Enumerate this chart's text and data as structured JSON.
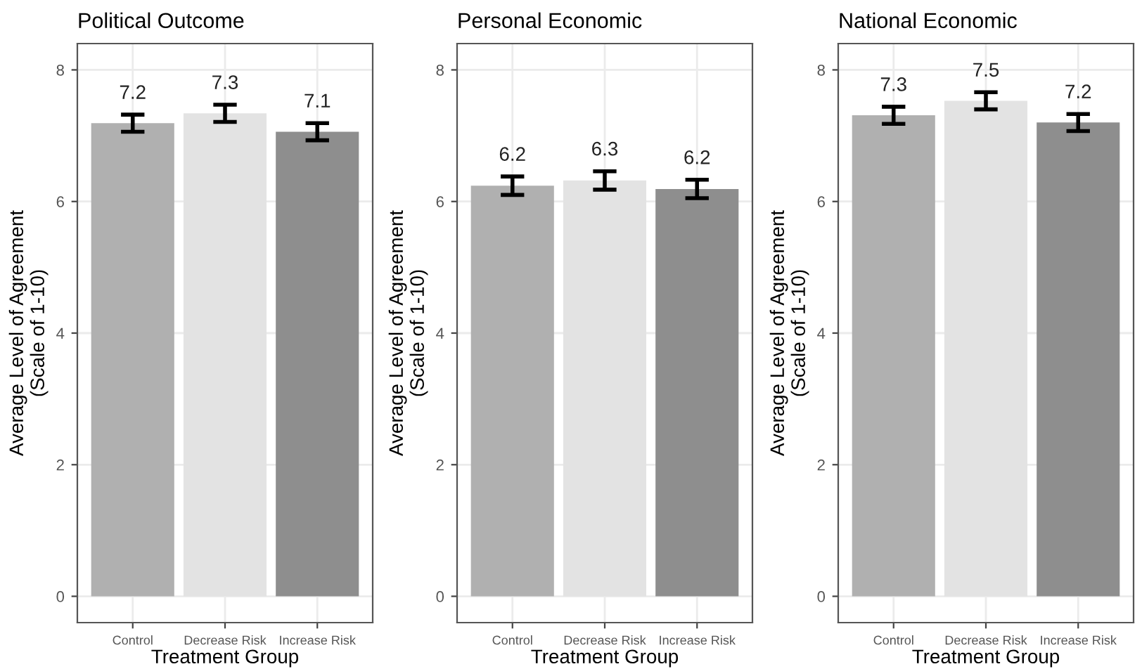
{
  "chart_data": [
    {
      "type": "bar",
      "title": "Political Outcome",
      "xlabel": "Treatment Group",
      "ylabel": "Average Level of Agreement\n(Scale of 1-10)",
      "categories": [
        "Control",
        "Decrease Risk",
        "Increase Risk"
      ],
      "values": [
        7.19,
        7.34,
        7.06
      ],
      "errors": [
        0.13,
        0.13,
        0.13
      ],
      "value_labels": [
        "7.2",
        "7.3",
        "7.1"
      ],
      "colors": [
        "#b0b0b0",
        "#e3e3e3",
        "#8e8e8e"
      ],
      "ylim": [
        -0.4,
        8.4
      ],
      "yticks": [
        0,
        2,
        4,
        6,
        8
      ],
      "grid": true
    },
    {
      "type": "bar",
      "title": "Personal Economic",
      "xlabel": "Treatment Group",
      "ylabel": "Average Level of Agreement\n(Scale of 1-10)",
      "categories": [
        "Control",
        "Decrease Risk",
        "Increase Risk"
      ],
      "values": [
        6.24,
        6.32,
        6.19
      ],
      "errors": [
        0.14,
        0.14,
        0.14
      ],
      "value_labels": [
        "6.2",
        "6.3",
        "6.2"
      ],
      "colors": [
        "#b0b0b0",
        "#e3e3e3",
        "#8e8e8e"
      ],
      "ylim": [
        -0.4,
        8.4
      ],
      "yticks": [
        0,
        2,
        4,
        6,
        8
      ],
      "grid": true
    },
    {
      "type": "bar",
      "title": "National Economic",
      "xlabel": "Treatment Group",
      "ylabel": "Average Level of Agreement\n(Scale of 1-10)",
      "categories": [
        "Control",
        "Decrease Risk",
        "Increase Risk"
      ],
      "values": [
        7.31,
        7.53,
        7.2
      ],
      "errors": [
        0.13,
        0.13,
        0.13
      ],
      "value_labels": [
        "7.3",
        "7.5",
        "7.2"
      ],
      "colors": [
        "#b0b0b0",
        "#e3e3e3",
        "#8e8e8e"
      ],
      "ylim": [
        -0.4,
        8.4
      ],
      "yticks": [
        0,
        2,
        4,
        6,
        8
      ],
      "grid": true
    }
  ]
}
